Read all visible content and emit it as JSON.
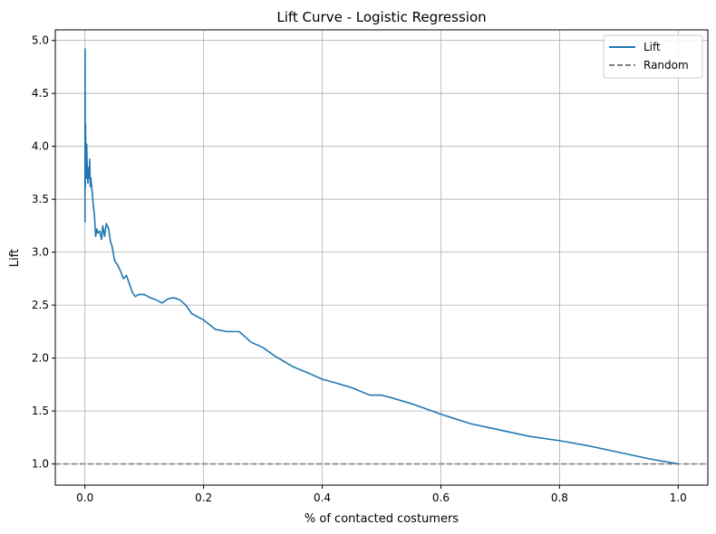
{
  "chart_data": {
    "type": "line",
    "title": "Lift Curve - Logistic Regression",
    "xlabel": "% of contacted costumers",
    "ylabel": "Lift",
    "xlim": [
      -0.05,
      1.05
    ],
    "ylim": [
      0.8,
      5.1
    ],
    "xticks": [
      0.0,
      0.2,
      0.4,
      0.6,
      0.8,
      1.0
    ],
    "xtick_labels": [
      "0.0",
      "0.2",
      "0.4",
      "0.6",
      "0.8",
      "1.0"
    ],
    "yticks": [
      1.0,
      1.5,
      2.0,
      2.5,
      3.0,
      3.5,
      4.0,
      4.5,
      5.0
    ],
    "ytick_labels": [
      "1.0",
      "1.5",
      "2.0",
      "2.5",
      "3.0",
      "3.5",
      "4.0",
      "4.5",
      "5.0"
    ],
    "grid": true,
    "legend_position": "top-right",
    "series": [
      {
        "name": "Lift",
        "color": "#1f77b4",
        "style": "solid",
        "x": [
          0.0,
          0.0003,
          0.0006,
          0.001,
          0.0015,
          0.002,
          0.003,
          0.004,
          0.005,
          0.006,
          0.007,
          0.008,
          0.009,
          0.01,
          0.012,
          0.014,
          0.016,
          0.018,
          0.02,
          0.022,
          0.025,
          0.028,
          0.03,
          0.033,
          0.036,
          0.04,
          0.043,
          0.046,
          0.05,
          0.055,
          0.06,
          0.065,
          0.07,
          0.075,
          0.08,
          0.085,
          0.09,
          0.1,
          0.11,
          0.12,
          0.13,
          0.14,
          0.15,
          0.16,
          0.17,
          0.18,
          0.2,
          0.22,
          0.24,
          0.26,
          0.28,
          0.3,
          0.32,
          0.35,
          0.38,
          0.4,
          0.42,
          0.45,
          0.48,
          0.5,
          0.52,
          0.55,
          0.6,
          0.65,
          0.7,
          0.75,
          0.8,
          0.85,
          0.9,
          0.95,
          1.0
        ],
        "y": [
          3.28,
          4.92,
          3.6,
          4.21,
          3.9,
          3.7,
          4.02,
          3.75,
          3.65,
          3.8,
          3.7,
          3.88,
          3.62,
          3.7,
          3.58,
          3.45,
          3.35,
          3.15,
          3.22,
          3.18,
          3.2,
          3.12,
          3.25,
          3.15,
          3.27,
          3.22,
          3.1,
          3.05,
          2.92,
          2.88,
          2.82,
          2.75,
          2.78,
          2.7,
          2.62,
          2.58,
          2.6,
          2.6,
          2.57,
          2.55,
          2.52,
          2.56,
          2.57,
          2.55,
          2.5,
          2.42,
          2.36,
          2.27,
          2.25,
          2.25,
          2.15,
          2.1,
          2.02,
          1.92,
          1.85,
          1.8,
          1.77,
          1.72,
          1.65,
          1.65,
          1.62,
          1.57,
          1.47,
          1.38,
          1.32,
          1.26,
          1.22,
          1.17,
          1.11,
          1.05,
          1.0
        ]
      },
      {
        "name": "Random",
        "color": "#808080",
        "style": "dashed",
        "x": [
          -0.05,
          1.05
        ],
        "y": [
          1.0,
          1.0
        ]
      }
    ]
  }
}
